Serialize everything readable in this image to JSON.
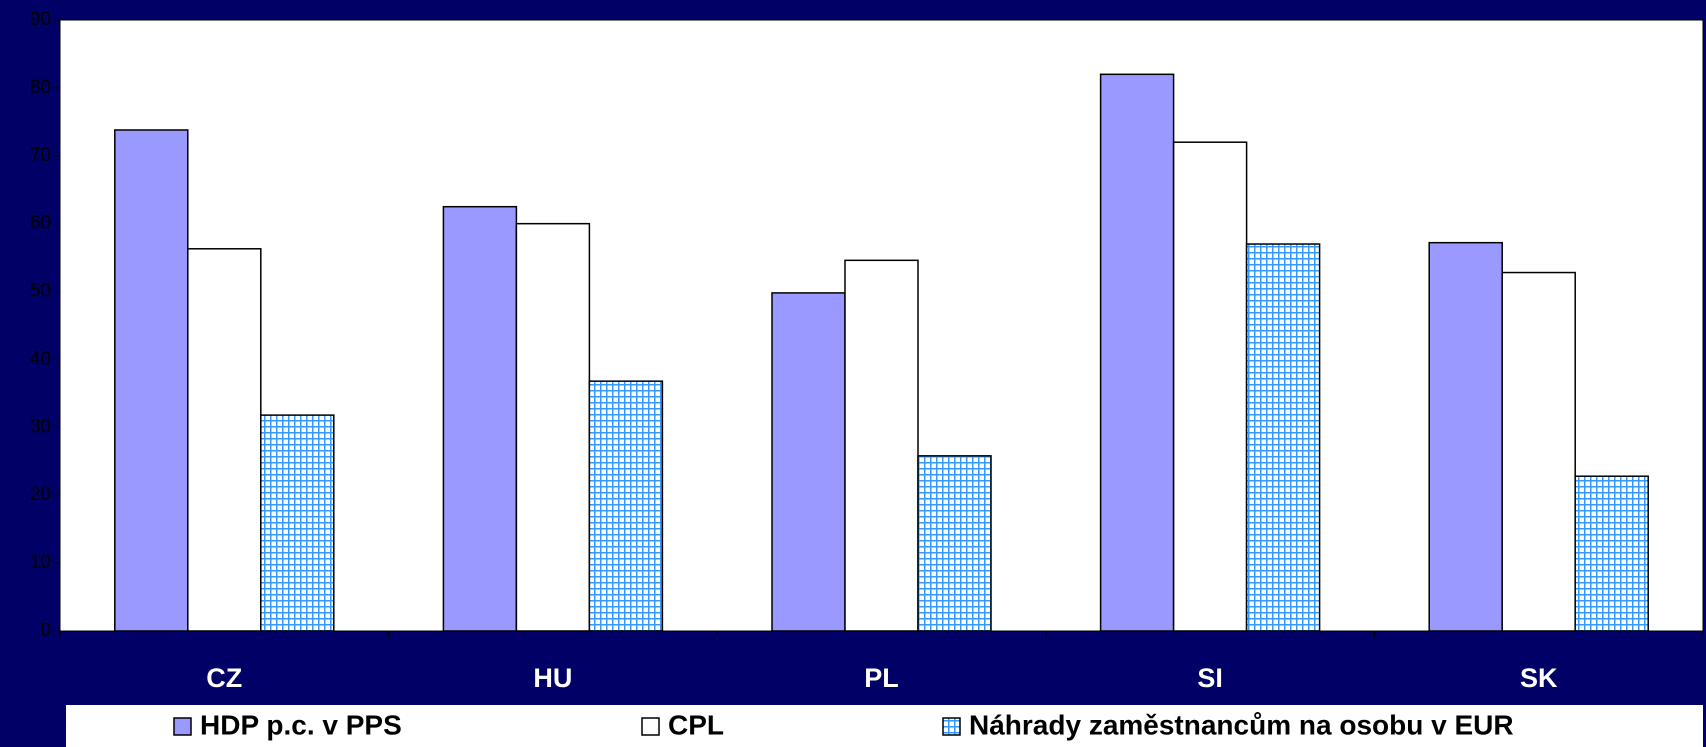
{
  "chart_data": {
    "type": "bar",
    "categories": [
      "CZ",
      "HU",
      "PL",
      "SI",
      "SK"
    ],
    "series": [
      {
        "name": "HDP p.c. v PPS",
        "color": "#9999ff",
        "values": [
          73.8,
          62.5,
          49.8,
          82,
          57.2
        ]
      },
      {
        "name": "CPL",
        "color": "#ffffff",
        "values": [
          56.3,
          60,
          54.6,
          72,
          52.8
        ]
      },
      {
        "name": "Náhrady zaměstnancům na osobu v EUR",
        "color": "#3399ff",
        "pattern": "grid",
        "values": [
          31.8,
          36.8,
          25.8,
          57,
          22.8
        ]
      }
    ],
    "ylim": [
      0,
      90
    ],
    "yticks": [
      0,
      10,
      20,
      30,
      40,
      50,
      60,
      70,
      80,
      90
    ],
    "legend": "bottom"
  }
}
